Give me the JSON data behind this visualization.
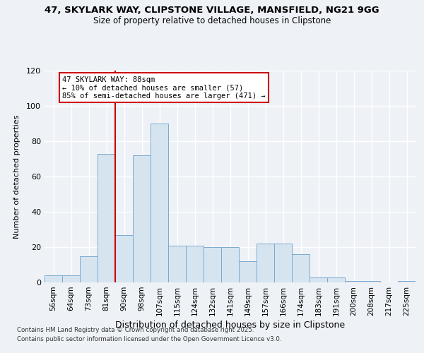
{
  "title_line1": "47, SKYLARK WAY, CLIPSTONE VILLAGE, MANSFIELD, NG21 9GG",
  "title_line2": "Size of property relative to detached houses in Clipstone",
  "xlabel": "Distribution of detached houses by size in Clipstone",
  "ylabel": "Number of detached properties",
  "categories": [
    "56sqm",
    "64sqm",
    "73sqm",
    "81sqm",
    "90sqm",
    "98sqm",
    "107sqm",
    "115sqm",
    "124sqm",
    "132sqm",
    "141sqm",
    "149sqm",
    "157sqm",
    "166sqm",
    "174sqm",
    "183sqm",
    "191sqm",
    "200sqm",
    "208sqm",
    "217sqm",
    "225sqm"
  ],
  "values": [
    4,
    4,
    15,
    73,
    27,
    72,
    90,
    21,
    21,
    20,
    20,
    12,
    22,
    22,
    16,
    3,
    3,
    1,
    1,
    0,
    1
  ],
  "bar_color": "#d6e4f0",
  "bar_edge_color": "#7aaacf",
  "property_line_x": 4,
  "annotation_text": "47 SKYLARK WAY: 88sqm\n← 10% of detached houses are smaller (57)\n85% of semi-detached houses are larger (471) →",
  "annotation_box_color": "#ffffff",
  "annotation_border_color": "#cc0000",
  "vline_color": "#cc0000",
  "ylim": [
    0,
    120
  ],
  "yticks": [
    0,
    20,
    40,
    60,
    80,
    100,
    120
  ],
  "footer_line1": "Contains HM Land Registry data © Crown copyright and database right 2025.",
  "footer_line2": "Contains public sector information licensed under the Open Government Licence v3.0.",
  "bg_color": "#eef2f7",
  "plot_bg_color": "#eef2f7",
  "grid_color": "#ffffff"
}
